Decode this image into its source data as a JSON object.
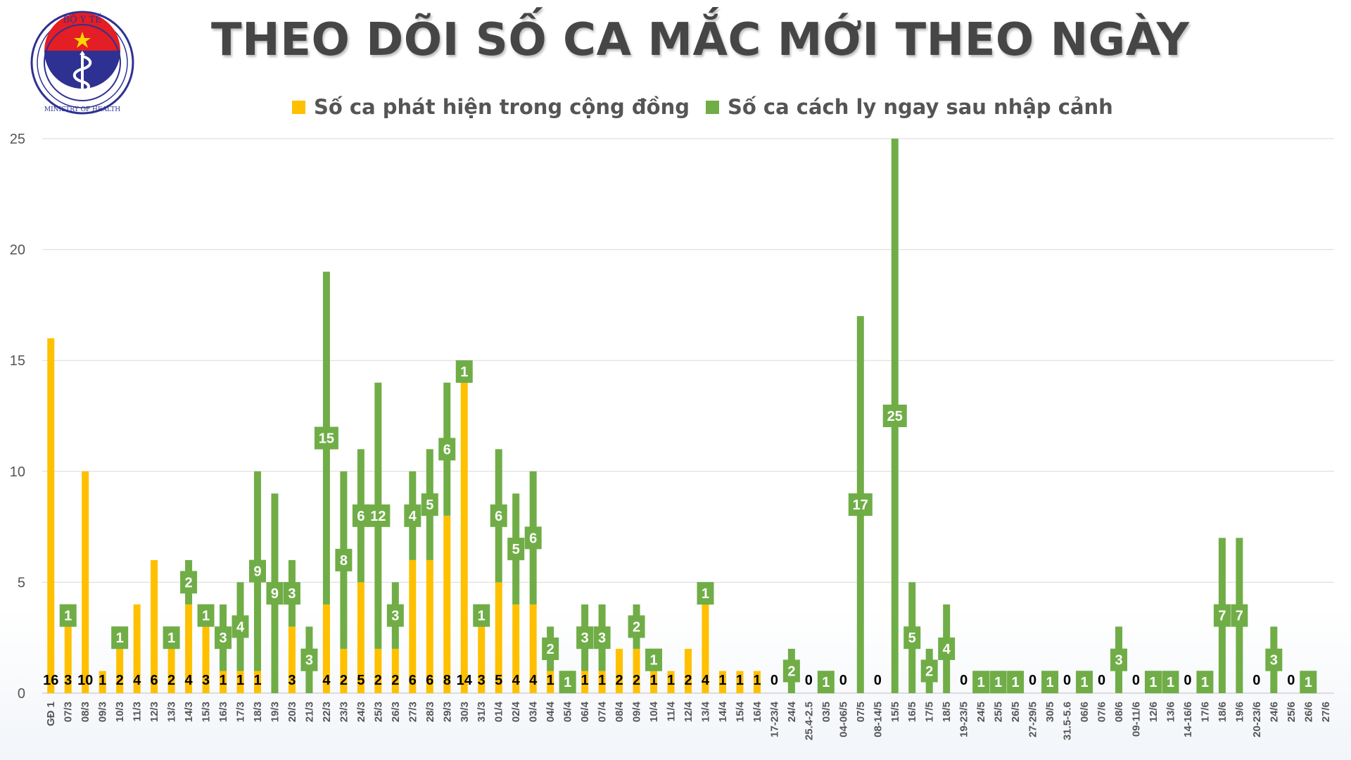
{
  "header": {
    "title": "THEO DÕI SỐ CA MẮC MỚI THEO NGÀY",
    "logo_text_top": "BỘ Y TẾ",
    "logo_text_bottom": "MINISTRY OF HEALTH"
  },
  "colors": {
    "community": "#FFC000",
    "quarantine": "#70AD47",
    "logo_blue": "#2E3192",
    "logo_red": "#E31E24"
  },
  "chart_data": {
    "type": "bar",
    "stacked": true,
    "ylim": [
      0,
      25
    ],
    "yticks": [
      0,
      5,
      10,
      15,
      20,
      25
    ],
    "grid": true,
    "legend_position": "top",
    "categories": [
      "GĐ 1",
      "07/3",
      "08/3",
      "09/3",
      "10/3",
      "11/3",
      "12/3",
      "13/3",
      "14/3",
      "15/3",
      "16/3",
      "17/3",
      "18/3",
      "19/3",
      "20/3",
      "21/3",
      "22/3",
      "23/3",
      "24/3",
      "25/3",
      "26/3",
      "27/3",
      "28/3",
      "29/3",
      "30/3",
      "31/3",
      "01/4",
      "02/4",
      "03/4",
      "04/4",
      "05/4",
      "06/4",
      "07/4",
      "08/4",
      "09/4",
      "10/4",
      "11/4",
      "12/4",
      "13/4",
      "14/4",
      "15/4",
      "16/4",
      "17-23/4",
      "24/4",
      "25.4-2.5",
      "03/5",
      "04-06/5",
      "07/5",
      "08-14/5",
      "15/5",
      "16/5",
      "17/5",
      "18/5",
      "19-23/5",
      "24/5",
      "25/5",
      "26/5",
      "27-29/5",
      "30/5",
      "31.5-5.6",
      "06/6",
      "07/6",
      "08/6",
      "09-11/6",
      "12/6",
      "13/6",
      "14-16/6",
      "17/6",
      "18/6",
      "19/6",
      "20-23/6",
      "24/6",
      "25/6",
      "26/6",
      "27/6"
    ],
    "series": [
      {
        "name": "Số ca phát hiện trong cộng đồng",
        "values": [
          16,
          3,
          10,
          1,
          2,
          4,
          6,
          2,
          4,
          3,
          1,
          1,
          1,
          0,
          3,
          0,
          4,
          2,
          5,
          2,
          2,
          6,
          6,
          8,
          14,
          3,
          5,
          4,
          4,
          1,
          0,
          1,
          1,
          2,
          2,
          1,
          1,
          2,
          4,
          1,
          1,
          1,
          0,
          0,
          0,
          0,
          0,
          0,
          0,
          0,
          0,
          0,
          0,
          0,
          0,
          0,
          0,
          0,
          0,
          0,
          0,
          0,
          0,
          0,
          0,
          0,
          0,
          0,
          0,
          0,
          0,
          0,
          0,
          0,
          0
        ],
        "labels": [
          16,
          3,
          10,
          1,
          2,
          4,
          6,
          2,
          4,
          3,
          1,
          1,
          1,
          null,
          3,
          null,
          4,
          2,
          5,
          2,
          2,
          6,
          6,
          8,
          14,
          3,
          5,
          4,
          4,
          1,
          null,
          1,
          1,
          2,
          2,
          1,
          1,
          2,
          4,
          1,
          1,
          1,
          0,
          null,
          0,
          null,
          0,
          null,
          0,
          null,
          null,
          null,
          null,
          0,
          null,
          null,
          null,
          0,
          null,
          0,
          null,
          0,
          null,
          0,
          null,
          null,
          0,
          null,
          null,
          null,
          0,
          null,
          0,
          null,
          null
        ]
      },
      {
        "name": "Số ca cách ly ngay sau nhập cảnh",
        "values": [
          0,
          1,
          0,
          0,
          1,
          0,
          0,
          1,
          2,
          1,
          3,
          4,
          9,
          9,
          3,
          3,
          15,
          8,
          6,
          12,
          3,
          4,
          5,
          6,
          1,
          1,
          6,
          5,
          6,
          2,
          1,
          3,
          3,
          0,
          2,
          1,
          0,
          0,
          1,
          0,
          0,
          0,
          0,
          2,
          0,
          1,
          0,
          17,
          0,
          25,
          5,
          2,
          4,
          0,
          1,
          1,
          1,
          0,
          1,
          0,
          1,
          0,
          3,
          0,
          1,
          1,
          0,
          1,
          7,
          7,
          0,
          3,
          0,
          1,
          0
        ],
        "labels": [
          null,
          1,
          null,
          null,
          1,
          null,
          null,
          1,
          2,
          1,
          3,
          4,
          9,
          9,
          3,
          3,
          15,
          8,
          6,
          12,
          3,
          4,
          5,
          6,
          1,
          1,
          6,
          5,
          6,
          2,
          1,
          3,
          3,
          null,
          2,
          1,
          null,
          null,
          1,
          null,
          null,
          null,
          null,
          2,
          null,
          1,
          null,
          17,
          null,
          25,
          5,
          2,
          4,
          null,
          1,
          1,
          1,
          null,
          1,
          null,
          1,
          null,
          3,
          null,
          1,
          1,
          null,
          1,
          7,
          7,
          null,
          3,
          null,
          1,
          null
        ]
      }
    ]
  }
}
